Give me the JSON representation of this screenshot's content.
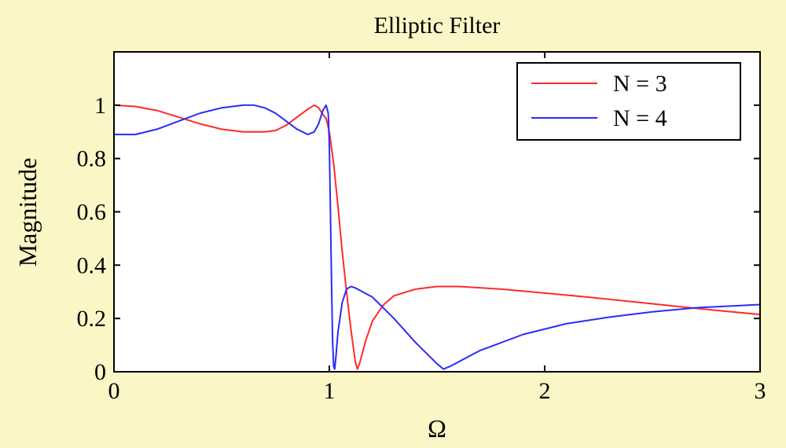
{
  "chart_data": {
    "type": "line",
    "title": "Elliptic Filter",
    "xlabel": "Ω",
    "ylabel": "Magnitude",
    "xlim": [
      0,
      3
    ],
    "ylim": [
      0,
      1.2
    ],
    "x_ticks": [
      "0",
      "1",
      "2",
      "3"
    ],
    "y_ticks": [
      "0",
      "0.2",
      "0.4",
      "0.6",
      "0.8",
      "1"
    ],
    "x_tick_values": [
      0,
      1,
      2,
      3
    ],
    "y_tick_values": [
      0,
      0.2,
      0.4,
      0.6,
      0.8,
      1.0
    ],
    "grid": false,
    "legend_position": "top-right",
    "background_color": "#fbf6c6",
    "plot_background": "#ffffff",
    "series": [
      {
        "name": "N = 3",
        "color": "#ff2a2a",
        "points": [
          [
            0,
            1.0
          ],
          [
            0.1,
            0.995
          ],
          [
            0.2,
            0.98
          ],
          [
            0.3,
            0.955
          ],
          [
            0.4,
            0.93
          ],
          [
            0.5,
            0.91
          ],
          [
            0.6,
            0.9
          ],
          [
            0.7,
            0.9
          ],
          [
            0.75,
            0.905
          ],
          [
            0.8,
            0.925
          ],
          [
            0.85,
            0.955
          ],
          [
            0.9,
            0.985
          ],
          [
            0.93,
            1.0
          ],
          [
            0.95,
            0.99
          ],
          [
            0.97,
            0.965
          ],
          [
            0.985,
            0.95
          ],
          [
            1.0,
            0.9
          ],
          [
            1.02,
            0.78
          ],
          [
            1.04,
            0.62
          ],
          [
            1.06,
            0.45
          ],
          [
            1.08,
            0.3
          ],
          [
            1.1,
            0.16
          ],
          [
            1.12,
            0.04
          ],
          [
            1.13,
            0.01
          ],
          [
            1.14,
            0.03
          ],
          [
            1.17,
            0.12
          ],
          [
            1.2,
            0.19
          ],
          [
            1.25,
            0.25
          ],
          [
            1.3,
            0.285
          ],
          [
            1.4,
            0.31
          ],
          [
            1.5,
            0.32
          ],
          [
            1.6,
            0.32
          ],
          [
            1.8,
            0.31
          ],
          [
            2.0,
            0.295
          ],
          [
            2.2,
            0.28
          ],
          [
            2.5,
            0.255
          ],
          [
            2.8,
            0.23
          ],
          [
            3.0,
            0.215
          ]
        ]
      },
      {
        "name": "N = 4",
        "color": "#2a2aff",
        "points": [
          [
            0,
            0.89
          ],
          [
            0.1,
            0.89
          ],
          [
            0.2,
            0.91
          ],
          [
            0.3,
            0.94
          ],
          [
            0.4,
            0.97
          ],
          [
            0.5,
            0.99
          ],
          [
            0.6,
            1.0
          ],
          [
            0.65,
            1.0
          ],
          [
            0.7,
            0.99
          ],
          [
            0.75,
            0.97
          ],
          [
            0.8,
            0.94
          ],
          [
            0.85,
            0.91
          ],
          [
            0.9,
            0.89
          ],
          [
            0.93,
            0.9
          ],
          [
            0.95,
            0.93
          ],
          [
            0.97,
            0.98
          ],
          [
            0.985,
            1.0
          ],
          [
            0.995,
            0.97
          ],
          [
            1.0,
            0.85
          ],
          [
            1.005,
            0.6
          ],
          [
            1.01,
            0.35
          ],
          [
            1.015,
            0.12
          ],
          [
            1.02,
            0.02
          ],
          [
            1.025,
            0.01
          ],
          [
            1.03,
            0.05
          ],
          [
            1.04,
            0.15
          ],
          [
            1.06,
            0.26
          ],
          [
            1.08,
            0.31
          ],
          [
            1.1,
            0.32
          ],
          [
            1.12,
            0.315
          ],
          [
            1.2,
            0.28
          ],
          [
            1.3,
            0.2
          ],
          [
            1.4,
            0.11
          ],
          [
            1.5,
            0.03
          ],
          [
            1.53,
            0.01
          ],
          [
            1.56,
            0.02
          ],
          [
            1.7,
            0.08
          ],
          [
            1.9,
            0.14
          ],
          [
            2.1,
            0.18
          ],
          [
            2.3,
            0.205
          ],
          [
            2.5,
            0.225
          ],
          [
            2.7,
            0.24
          ],
          [
            2.9,
            0.248
          ],
          [
            3.0,
            0.252
          ]
        ]
      }
    ]
  }
}
